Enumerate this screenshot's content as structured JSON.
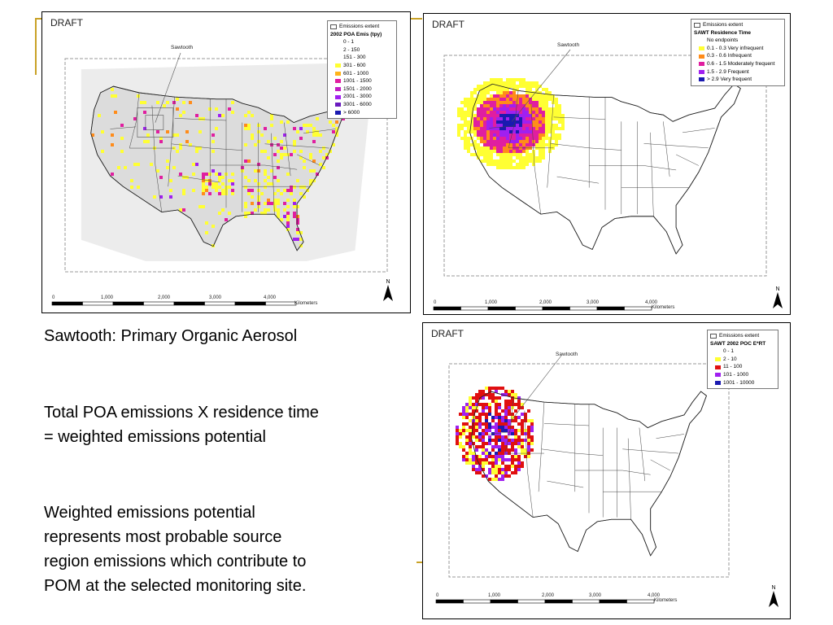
{
  "text": {
    "title_line": "Sawtooth:  Primary Organic Aerosol",
    "para2": [
      "Total POA emissions X residence time",
      "= weighted emissions potential"
    ],
    "para3": [
      "Weighted emissions potential",
      "represents most probable source",
      "region emissions which contribute to",
      "POM at the selected monitoring site."
    ]
  },
  "colors": {
    "accent": "#c9a227",
    "yellow": "#ffff33",
    "orange": "#ff8c1a",
    "magenta": "#e01ea0",
    "purple": "#a020f0",
    "darkpurple": "#6a1bbf",
    "blue": "#1a1ab0",
    "red": "#e01010",
    "gray": "#e5e5e5"
  },
  "maps": [
    {
      "draft": "DRAFT",
      "site_label": "Sawtooth",
      "legend": {
        "extent_label": "Emissions extent",
        "title": "2002 POA Emis (tpy)",
        "items": [
          {
            "label": "0 - 1",
            "color": "#ffffff"
          },
          {
            "label": "2 - 150",
            "color": "#ffffff"
          },
          {
            "label": "151 - 300",
            "color": "#ffffff"
          },
          {
            "label": "301 - 600",
            "color": "#ffff33"
          },
          {
            "label": "601 - 1000",
            "color": "#ffb319"
          },
          {
            "label": "1001 - 1500",
            "color": "#e01ea0"
          },
          {
            "label": "1501 - 2000",
            "color": "#c21ec4"
          },
          {
            "label": "2001 - 3000",
            "color": "#a020f0"
          },
          {
            "label": "3001 - 6000",
            "color": "#6a1bbf"
          },
          {
            "label": "> 6000",
            "color": "#1a1ab0"
          }
        ]
      },
      "scale": {
        "ticks": [
          "0",
          "1,000",
          "2,000",
          "3,000",
          "4,000"
        ],
        "unit": "Kilometers"
      },
      "north": "N"
    },
    {
      "draft": "DRAFT",
      "site_label": "Sawtooth",
      "legend": {
        "extent_label": "Emissions extent",
        "title": "SAWT Residence Time",
        "items": [
          {
            "label": "No endpoints",
            "color": "#ffffff"
          },
          {
            "label": "0.1 - 0.3 Very infrequent",
            "color": "#ffff33"
          },
          {
            "label": "0.3 - 0.6 Infrequent",
            "color": "#ff8c1a"
          },
          {
            "label": "0.6 - 1.5 Moderately frequent",
            "color": "#e01ea0"
          },
          {
            "label": "1.5 - 2.9 Frequent",
            "color": "#a020f0"
          },
          {
            "label": "> 2.9 Very frequent",
            "color": "#1a1ab0"
          }
        ]
      },
      "scale": {
        "ticks": [
          "0",
          "1,000",
          "2,000",
          "3,000",
          "4,000"
        ],
        "unit": "Kilometers"
      },
      "north": "N"
    },
    {
      "draft": "DRAFT",
      "site_label": "Sawtooth",
      "legend": {
        "extent_label": "Emissions extent",
        "title": "SAWT 2002 POC E*RT",
        "items": [
          {
            "label": "0 - 1",
            "color": "#ffffff"
          },
          {
            "label": "2 - 10",
            "color": "#ffff33"
          },
          {
            "label": "11 - 100",
            "color": "#e01010"
          },
          {
            "label": "101 - 1000",
            "color": "#a020f0"
          },
          {
            "label": "1001 - 10000",
            "color": "#1a1ab0"
          }
        ]
      },
      "scale": {
        "ticks": [
          "0",
          "1,000",
          "2,000",
          "3,000",
          "4,000"
        ],
        "unit": "Kilometers"
      },
      "north": "N"
    }
  ]
}
